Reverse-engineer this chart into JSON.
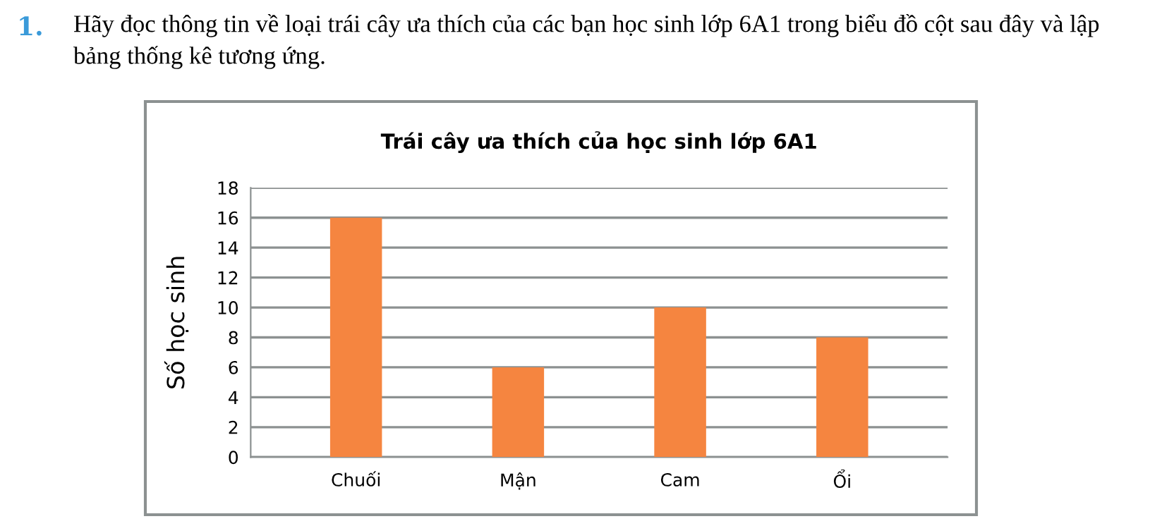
{
  "chart_data": {
    "type": "bar",
    "title": "Trái cây ưa thích của học sinh lớp 6A1",
    "ylabel": "Số học sinh",
    "categories": [
      "Chuối",
      "Mận",
      "Cam",
      "Ổi"
    ],
    "values": [
      16,
      6,
      10,
      8
    ],
    "color": "#f58540",
    "ylim": [
      0,
      18
    ],
    "yticks": [
      0,
      2,
      4,
      6,
      8,
      10,
      12,
      14,
      16,
      18
    ],
    "grid": "y",
    "legend": false,
    "annotations": [
      "1.",
      "Hãy đọc thông tin về loại trái cây ưa thích của các bạn học sinh lớp 6A1 trong biểu đồ cột sau đây và lập bảng thống kê tương ứng."
    ]
  }
}
